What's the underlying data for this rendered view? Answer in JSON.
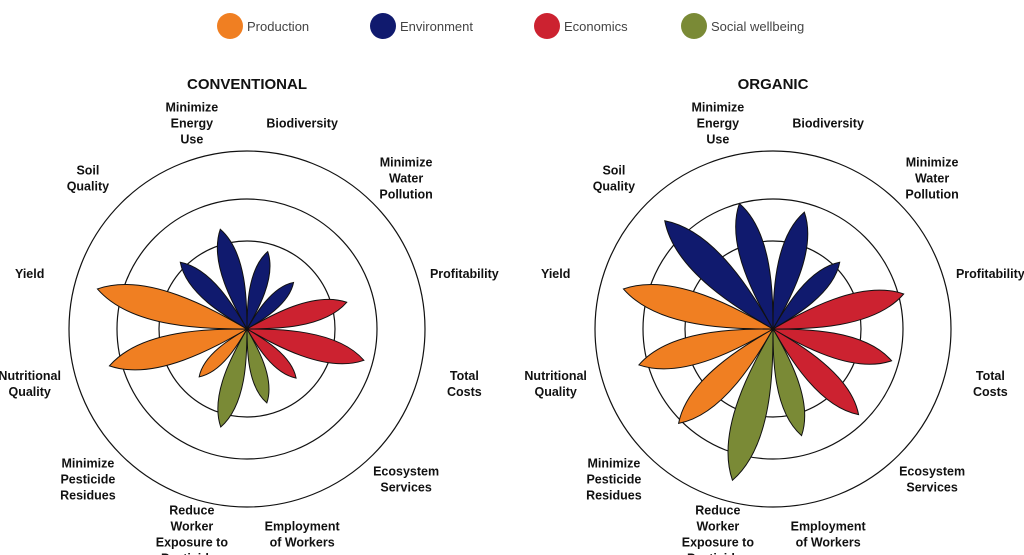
{
  "chart_data": {
    "type": "polar-petal",
    "max": 1,
    "rings": [
      0.333,
      0.667,
      1.0
    ],
    "legend": [
      {
        "name": "Production",
        "color": "#f07f22"
      },
      {
        "name": "Environment",
        "color": "#101a6e"
      },
      {
        "name": "Economics",
        "color": "#cc2230"
      },
      {
        "name": "Social wellbeing",
        "color": "#7a8a36"
      }
    ],
    "petal_colors": {
      "production": "#f07f22",
      "environment": "#101a6e",
      "economics": "#cc2230",
      "social": "#7a8a36"
    },
    "categories": [
      {
        "label": [
          "Yield"
        ],
        "group": "production"
      },
      {
        "label": [
          "Soil",
          "Quality"
        ],
        "group": "environment"
      },
      {
        "label": [
          "Minimize",
          "Energy",
          "Use"
        ],
        "group": "environment"
      },
      {
        "label": [
          "Biodiversity"
        ],
        "group": "environment"
      },
      {
        "label": [
          "Minimize",
          "Water",
          "Pollution"
        ],
        "group": "environment"
      },
      {
        "label": [
          "Profitability"
        ],
        "group": "economics"
      },
      {
        "label": [
          "Total",
          "Costs"
        ],
        "group": "economics"
      },
      {
        "label": [
          "Ecosystem",
          "Services"
        ],
        "group": "economics"
      },
      {
        "label": [
          "Employment",
          "of Workers"
        ],
        "group": "social"
      },
      {
        "label": [
          "Reduce",
          "Worker",
          "Exposure to",
          "Pesticides"
        ],
        "group": "social"
      },
      {
        "label": [
          "Minimize",
          "Pesticide",
          "Residues"
        ],
        "group": "production"
      },
      {
        "label": [
          "Nutritional",
          "Quality"
        ],
        "group": "production"
      }
    ],
    "panels": [
      {
        "title": "CONVENTIONAL",
        "values": [
          0.87,
          0.53,
          0.58,
          0.45,
          0.37,
          0.58,
          0.68,
          0.39,
          0.43,
          0.57,
          0.38,
          0.8
        ]
      },
      {
        "title": "ORGANIC",
        "values": [
          0.87,
          0.86,
          0.73,
          0.68,
          0.53,
          0.76,
          0.69,
          0.68,
          0.62,
          0.88,
          0.75,
          0.78
        ]
      }
    ]
  }
}
